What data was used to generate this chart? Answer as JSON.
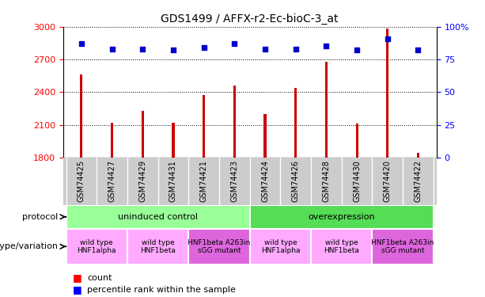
{
  "title": "GDS1499 / AFFX-r2-Ec-bioC-3_at",
  "samples": [
    "GSM74425",
    "GSM74427",
    "GSM74429",
    "GSM74431",
    "GSM74421",
    "GSM74423",
    "GSM74424",
    "GSM74426",
    "GSM74428",
    "GSM74430",
    "GSM74420",
    "GSM74422"
  ],
  "counts": [
    2560,
    2120,
    2230,
    2120,
    2370,
    2460,
    2200,
    2440,
    2680,
    2110,
    2980,
    1840
  ],
  "percentiles": [
    87,
    83,
    83,
    82,
    84,
    87,
    83,
    83,
    85,
    82,
    91,
    82
  ],
  "ylim_left": [
    1800,
    3000
  ],
  "ylim_right": [
    0,
    100
  ],
  "yticks_left": [
    1800,
    2100,
    2400,
    2700,
    3000
  ],
  "yticks_right": [
    0,
    25,
    50,
    75,
    100
  ],
  "bar_color": "#cc0000",
  "dot_color": "#0000cc",
  "protocol_groups": [
    {
      "label": "uninduced control",
      "start": 0,
      "end": 6,
      "color": "#99ff99"
    },
    {
      "label": "overexpression",
      "start": 6,
      "end": 12,
      "color": "#55dd55"
    }
  ],
  "genotype_groups": [
    {
      "label": "wild type\nHNF1alpha",
      "start": 0,
      "end": 2,
      "color": "#ffaaff"
    },
    {
      "label": "wild type\nHNF1beta",
      "start": 2,
      "end": 4,
      "color": "#ffaaff"
    },
    {
      "label": "HNF1beta A263in\nsGG mutant",
      "start": 4,
      "end": 6,
      "color": "#dd66dd"
    },
    {
      "label": "wild type\nHNF1alpha",
      "start": 6,
      "end": 8,
      "color": "#ffaaff"
    },
    {
      "label": "wild type\nHNF1beta",
      "start": 8,
      "end": 10,
      "color": "#ffaaff"
    },
    {
      "label": "HNF1beta A263in\nsGG mutant",
      "start": 10,
      "end": 12,
      "color": "#dd66dd"
    }
  ],
  "protocol_label": "protocol",
  "genotype_label": "genotype/variation",
  "legend_count": "count",
  "legend_percentile": "percentile rank within the sample",
  "xtick_bg": "#cccccc",
  "bar_width": 0.08,
  "dot_size": 25
}
